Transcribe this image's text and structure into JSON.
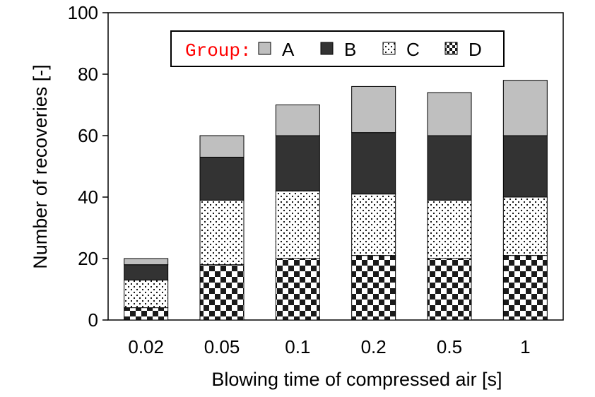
{
  "chart_data": {
    "type": "bar",
    "stacked": true,
    "title": "",
    "xlabel": "Blowing time of compressed air [s]",
    "ylabel": "Number of recoveries [-]",
    "categories": [
      "0.02",
      "0.05",
      "0.1",
      "0.2",
      "0.5",
      "1"
    ],
    "ylim": [
      0,
      100
    ],
    "yticks": [
      0,
      20,
      40,
      60,
      80,
      100
    ],
    "legend": {
      "title": "Group:",
      "title_color": "#ff0000",
      "placement": "top-center",
      "orientation": "horizontal"
    },
    "series": [
      {
        "name": "D",
        "pattern": "checkerboard",
        "values": [
          4,
          18,
          20,
          21,
          20,
          21
        ]
      },
      {
        "name": "C",
        "pattern": "dotted",
        "values": [
          9,
          21,
          22,
          20,
          19,
          19
        ]
      },
      {
        "name": "B",
        "color": "#333333",
        "values": [
          5,
          14,
          18,
          20,
          21,
          20
        ]
      },
      {
        "name": "A",
        "color": "#bfbfbf",
        "values": [
          2,
          7,
          10,
          15,
          14,
          18
        ]
      }
    ],
    "legend_order": [
      "A",
      "B",
      "C",
      "D"
    ]
  }
}
